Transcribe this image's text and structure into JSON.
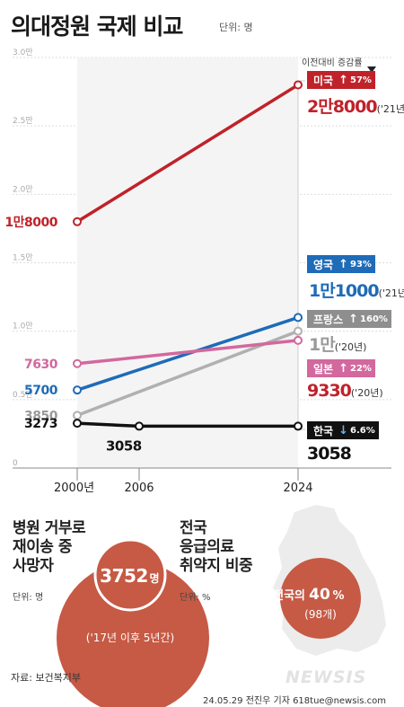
{
  "title": "의대정원 국제 비교",
  "unit": "단위: 명",
  "yoy_header": "이전대비 증감률",
  "chart_data": {
    "type": "line",
    "title": "의대정원 국제 비교",
    "unit": "단위: 명",
    "x": [
      "2000년",
      "2006",
      "2024"
    ],
    "ylim": [
      0,
      30000
    ],
    "yticks": [
      "0",
      "0.5만",
      "1.0만",
      "1.5만",
      "2.0만",
      "2.5만",
      "3.0만"
    ],
    "series": [
      {
        "name": "미국",
        "color": "#c0222a",
        "values": [
          18000,
          null,
          28000
        ],
        "start_label": "1만8000",
        "end_label": "2만8000",
        "end_note": "('21년)",
        "change_dir": "up",
        "change": "57%"
      },
      {
        "name": "영국",
        "color": "#1e6bb8",
        "values": [
          5700,
          null,
          11000
        ],
        "start_label": "5700",
        "end_label": "1만1000",
        "end_note": "('21년)",
        "change_dir": "up",
        "change": "93%"
      },
      {
        "name": "프랑스",
        "color": "#b0b0b0",
        "values": [
          3850,
          null,
          10000
        ],
        "start_label": "3850",
        "end_label": "1만",
        "end_note": "('20년)",
        "change_dir": "up",
        "change": "160%"
      },
      {
        "name": "일본",
        "color": "#d2689e",
        "values": [
          7630,
          null,
          9330
        ],
        "start_label": "7630",
        "end_label": "9330",
        "end_note": "('20년)",
        "change_dir": "up",
        "change": "22%"
      },
      {
        "name": "한국",
        "color": "#111111",
        "values": [
          3273,
          3058,
          3058
        ],
        "start_label": "3273",
        "mid_label": "3058",
        "end_label": "3058",
        "change_dir": "down",
        "change": "6.6%"
      }
    ]
  },
  "icons": {
    "arrow_up": "↑",
    "arrow_down": "↓"
  },
  "section1": {
    "title_lines": [
      "병원 거부로",
      "재이송 중",
      "사망자"
    ],
    "unit": "단위: 명",
    "value": "3752",
    "value_suffix": "명",
    "note": "('17년 이후 5년간)"
  },
  "section2": {
    "title_lines": [
      "전국",
      "응급의료",
      "취약지 비중"
    ],
    "unit": "단위: %",
    "value_prefix": "전국의",
    "value": "40",
    "value_suffix": "%",
    "note": "(98개)"
  },
  "source": "자료: 보건복지부",
  "credit": "24.05.29 전진우 기자 618tue@newsis.com",
  "logo": "NEWSIS"
}
